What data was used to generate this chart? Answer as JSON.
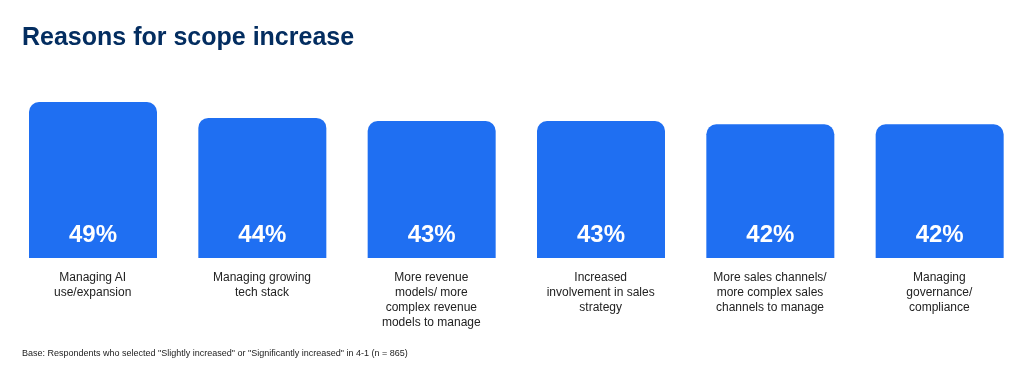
{
  "chart_data": {
    "type": "bar",
    "title": "Reasons for scope increase",
    "categories": [
      "Managing AI use/expansion",
      "Managing growing tech stack",
      "More revenue models/ more complex revenue models to manage",
      "Increased involvement in sales strategy",
      "More sales channels/ more complex sales channels to manage",
      "Managing governance/ compliance"
    ],
    "values": [
      49,
      44,
      43,
      43,
      42,
      42
    ],
    "value_labels": [
      "49%",
      "44%",
      "43%",
      "43%",
      "42%",
      "42%"
    ],
    "color": "#1f6ff2",
    "annotations": [
      "Base: Respondents who selected \"Slightly increased\" or \"Significantly increased\" in 4-1 (n = 865)"
    ]
  }
}
